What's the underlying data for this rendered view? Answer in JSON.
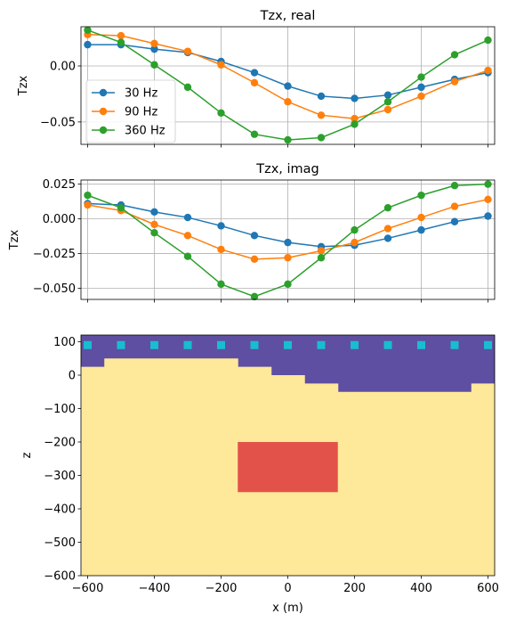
{
  "colors": {
    "s30": "#1f77b4",
    "s90": "#ff7f0e",
    "s360": "#2ca02c",
    "grid": "#b0b0b0",
    "sky": "#5e4fa2",
    "ground": "#fee89a",
    "block": "#e3524a",
    "receiver": "#17becf"
  },
  "chart_data": [
    {
      "type": "line",
      "title": "Tzx, real",
      "ylabel": "Tzx",
      "xlabel": "",
      "xlim": [
        -620,
        620
      ],
      "ylim": [
        -0.07,
        0.035
      ],
      "yticks": [
        0.0,
        -0.05
      ],
      "ytick_labels": [
        "0.00",
        "−0.05"
      ],
      "xticks": [
        -600,
        -400,
        -200,
        0,
        200,
        400,
        600
      ],
      "grid": true,
      "legend": "center-left",
      "x": [
        -600,
        -500,
        -400,
        -300,
        -200,
        -100,
        0,
        100,
        200,
        300,
        400,
        500,
        600
      ],
      "series": [
        {
          "name": "30 Hz",
          "color_key": "s30",
          "values": [
            0.019,
            0.019,
            0.015,
            0.012,
            0.004,
            -0.006,
            -0.018,
            -0.027,
            -0.029,
            -0.026,
            -0.019,
            -0.012,
            -0.006
          ]
        },
        {
          "name": "90 Hz",
          "color_key": "s90",
          "values": [
            0.028,
            0.027,
            0.02,
            0.013,
            0.001,
            -0.015,
            -0.032,
            -0.044,
            -0.047,
            -0.039,
            -0.027,
            -0.014,
            -0.004
          ]
        },
        {
          "name": "360 Hz",
          "color_key": "s360",
          "values": [
            0.032,
            0.021,
            0.001,
            -0.019,
            -0.042,
            -0.061,
            -0.066,
            -0.064,
            -0.052,
            -0.032,
            -0.01,
            0.01,
            0.023
          ]
        }
      ]
    },
    {
      "type": "line",
      "title": "Tzx, imag",
      "ylabel": "Tzx",
      "xlabel": "",
      "xlim": [
        -620,
        620
      ],
      "ylim": [
        -0.058,
        0.028
      ],
      "yticks": [
        0.025,
        0.0,
        -0.025,
        -0.05
      ],
      "ytick_labels": [
        "0.025",
        "0.000",
        "−0.025",
        "−0.050"
      ],
      "xticks": [
        -600,
        -400,
        -200,
        0,
        200,
        400,
        600
      ],
      "grid": true,
      "x": [
        -600,
        -500,
        -400,
        -300,
        -200,
        -100,
        0,
        100,
        200,
        300,
        400,
        500,
        600
      ],
      "series": [
        {
          "name": "30 Hz",
          "color_key": "s30",
          "values": [
            0.011,
            0.01,
            0.005,
            0.001,
            -0.005,
            -0.012,
            -0.017,
            -0.02,
            -0.019,
            -0.014,
            -0.008,
            -0.002,
            0.002
          ]
        },
        {
          "name": "90 Hz",
          "color_key": "s90",
          "values": [
            0.01,
            0.006,
            -0.004,
            -0.012,
            -0.022,
            -0.029,
            -0.028,
            -0.023,
            -0.017,
            -0.007,
            0.001,
            0.009,
            0.014
          ]
        },
        {
          "name": "360 Hz",
          "color_key": "s360",
          "values": [
            0.017,
            0.008,
            -0.01,
            -0.027,
            -0.047,
            -0.056,
            -0.047,
            -0.028,
            -0.008,
            0.008,
            0.017,
            0.024,
            0.025
          ]
        }
      ]
    },
    {
      "type": "heatmap",
      "title": "",
      "xlabel": "x (m)",
      "ylabel": "z",
      "xlim": [
        -620,
        620
      ],
      "ylim": [
        -600,
        120
      ],
      "xticks": [
        -600,
        -400,
        -200,
        0,
        200,
        400,
        600
      ],
      "xtick_labels": [
        "−600",
        "−400",
        "−200",
        "0",
        "200",
        "400",
        "600"
      ],
      "yticks": [
        100,
        0,
        -100,
        -200,
        -300,
        -400,
        -500,
        -600
      ],
      "ytick_labels": [
        "100",
        "0",
        "−100",
        "−200",
        "−300",
        "−400",
        "−500",
        "−600"
      ],
      "surface_topography": [
        {
          "x0": -620,
          "x1": -550,
          "z": 25
        },
        {
          "x0": -550,
          "x1": -150,
          "z": 50
        },
        {
          "x0": -150,
          "x1": -50,
          "z": 25
        },
        {
          "x0": -50,
          "x1": 50,
          "z": 0
        },
        {
          "x0": 50,
          "x1": 150,
          "z": -25
        },
        {
          "x0": 150,
          "x1": 550,
          "z": -50
        },
        {
          "x0": 550,
          "x1": 620,
          "z": -25
        }
      ],
      "conductive_block": {
        "x0": -150,
        "x1": 150,
        "z_top": -200,
        "z_bottom": -350
      },
      "receivers": {
        "z": 90,
        "x": [
          -600,
          -500,
          -400,
          -300,
          -200,
          -100,
          0,
          100,
          200,
          300,
          400,
          500,
          600
        ]
      }
    }
  ]
}
